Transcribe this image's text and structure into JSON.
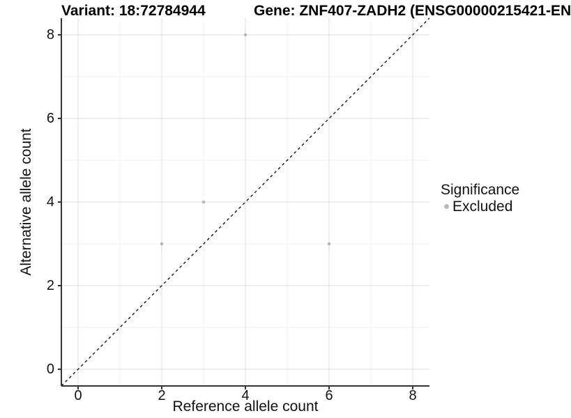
{
  "chart_data": {
    "type": "scatter",
    "title_left": "Variant: 18:72784944",
    "title_right": "Gene: ZNF407-ZADH2 (ENSG00000215421-EN",
    "xlabel": "Reference allele count",
    "ylabel": "Alternative allele count",
    "xlim": [
      -0.4,
      8.4
    ],
    "ylim": [
      -0.4,
      8.4
    ],
    "x_ticks": [
      0,
      2,
      4,
      6,
      8
    ],
    "y_ticks": [
      0,
      2,
      4,
      6,
      8
    ],
    "x_minor": [
      1,
      3,
      5,
      7
    ],
    "y_minor": [
      1,
      3,
      5,
      7
    ],
    "grid": {
      "major_color": "#e3e3e3",
      "minor_color": "#f0f0f0"
    },
    "axis_color": "#333333",
    "identity_line": {
      "style": "dashed",
      "color": "#000000",
      "slope": 1,
      "intercept": 0
    },
    "series": [
      {
        "name": "Excluded",
        "color": "#b9b9b9",
        "points": [
          [
            2,
            3
          ],
          [
            3,
            4
          ],
          [
            4,
            8
          ],
          [
            6,
            3
          ]
        ]
      }
    ],
    "legend": {
      "title": "Significance",
      "position": "right",
      "items": [
        {
          "label": "Excluded",
          "color": "#b9b9b9"
        }
      ]
    }
  }
}
